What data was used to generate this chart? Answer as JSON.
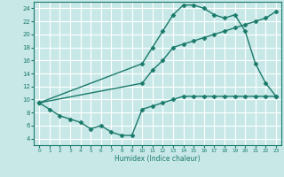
{
  "line1_x": [
    0,
    1,
    2,
    3,
    4,
    5,
    6,
    7,
    8,
    9,
    10,
    11,
    12,
    13,
    14,
    15,
    16,
    17,
    18,
    19,
    20,
    21,
    22,
    23
  ],
  "line1_y": [
    9.5,
    8.5,
    7.5,
    7.0,
    6.5,
    5.5,
    6.0,
    5.0,
    4.5,
    4.5,
    8.5,
    9.0,
    9.5,
    10.0,
    10.5,
    10.5,
    10.5,
    10.5,
    10.5,
    10.5,
    10.5,
    10.5,
    10.5,
    10.5
  ],
  "line2_x": [
    0,
    10,
    11,
    12,
    13,
    14,
    15,
    16,
    17,
    18,
    19,
    20,
    21,
    22,
    23
  ],
  "line2_y": [
    9.5,
    15.5,
    18.0,
    20.5,
    23.0,
    24.5,
    24.5,
    24.0,
    23.0,
    22.5,
    23.0,
    20.5,
    15.5,
    12.5,
    10.5
  ],
  "line3_x": [
    0,
    10,
    11,
    12,
    13,
    14,
    15,
    16,
    17,
    18,
    19,
    20,
    21,
    22,
    23
  ],
  "line3_y": [
    9.5,
    12.5,
    14.5,
    16.0,
    18.0,
    18.5,
    19.0,
    19.5,
    20.0,
    20.5,
    21.0,
    21.5,
    22.0,
    22.5,
    23.5
  ],
  "color": "#1a7a6a",
  "bg_color": "#c8e8e8",
  "grid_color": "#ffffff",
  "xlabel": "Humidex (Indice chaleur)",
  "ylim": [
    3,
    25
  ],
  "xlim": [
    -0.5,
    23.5
  ],
  "yticks": [
    4,
    6,
    8,
    10,
    12,
    14,
    16,
    18,
    20,
    22,
    24
  ],
  "xticks": [
    0,
    1,
    2,
    3,
    4,
    5,
    6,
    7,
    8,
    9,
    10,
    11,
    12,
    13,
    14,
    15,
    16,
    17,
    18,
    19,
    20,
    21,
    22,
    23
  ],
  "marker": "D",
  "markersize": 2.5,
  "linewidth": 1.0
}
